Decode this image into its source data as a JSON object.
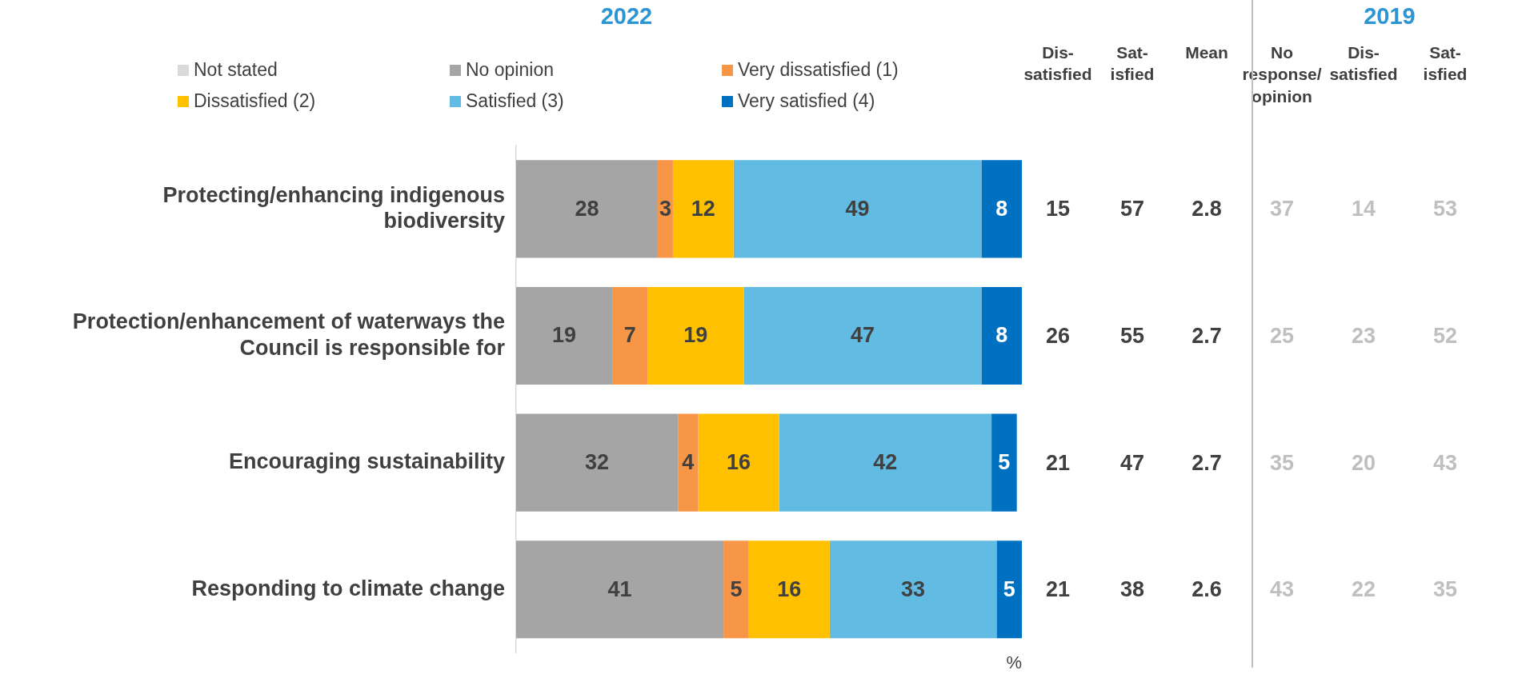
{
  "chart_data": [
    {
      "type": "bar",
      "title": "2022",
      "orientation": "horizontal",
      "stacked": true,
      "legend": "top",
      "tick_labels": "y",
      "grid": false,
      "xlabel": "%",
      "xlim": [
        0,
        100
      ],
      "categories": [
        "Protecting/enhancing indigenous biodiversity",
        "Protection/enhancement of waterways the Council is responsible for",
        "Encouraging sustainability",
        "Responding to climate change"
      ],
      "series": [
        {
          "name": "Not stated",
          "color": "#d9d9d9",
          "values": [
            0,
            0,
            0,
            0
          ],
          "value_labels": [
            null,
            null,
            null,
            null
          ]
        },
        {
          "name": "No opinion",
          "color": "#a5a5a5",
          "values": [
            28,
            19,
            32,
            41
          ],
          "value_labels": [
            "28",
            "19",
            "32",
            "41"
          ]
        },
        {
          "name": "Very dissatisfied (1)",
          "color": "#f79646",
          "values": [
            3,
            7,
            4,
            5
          ],
          "value_labels": [
            "3",
            "7",
            "4",
            "5"
          ]
        },
        {
          "name": "Dissatisfied (2)",
          "color": "#ffc000",
          "values": [
            12,
            19,
            16,
            16
          ],
          "value_labels": [
            "12",
            "19",
            "16",
            "16"
          ]
        },
        {
          "name": "Satisfied (3)",
          "color": "#62bbe3",
          "values": [
            49,
            47,
            42,
            33
          ],
          "value_labels": [
            "49",
            "47",
            "42",
            "33"
          ]
        },
        {
          "name": "Very satisfied (4)",
          "color": "#0070c0",
          "values": [
            8,
            8,
            5,
            5
          ],
          "value_labels": [
            "8",
            "8",
            "5",
            "5"
          ]
        }
      ]
    },
    {
      "type": "other",
      "color": "#404040",
      "categories": [
        "Dis-\nsatisfied",
        "Sat-\nisfied",
        "Mean"
      ],
      "cells": [
        [
          "15",
          "57",
          "2.8"
        ],
        [
          "26",
          "55",
          "2.7"
        ],
        [
          "21",
          "47",
          "2.7"
        ],
        [
          "21",
          "38",
          "2.6"
        ]
      ]
    },
    {
      "type": "other",
      "title": "2019",
      "color": "#bfbfbf",
      "categories": [
        "No\nresponse/\nopinion",
        "Dis-\nsatisfied",
        "Sat-\nisfied"
      ],
      "cells": [
        [
          "37",
          "14",
          "53"
        ],
        [
          "25",
          "23",
          "52"
        ],
        [
          "35",
          "20",
          "43"
        ],
        [
          "43",
          "22",
          "35"
        ]
      ]
    }
  ]
}
